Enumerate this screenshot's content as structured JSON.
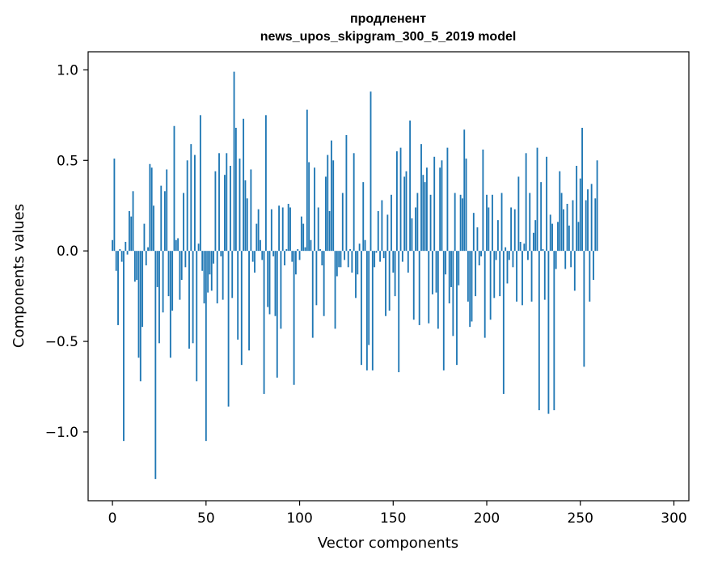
{
  "chart_data": {
    "type": "bar",
    "title_line1": "продленент",
    "title_line2": "news_upos_skipgram_300_5_2019 model",
    "xlabel": "Vector components",
    "ylabel": "Components values",
    "xlim": [
      -13,
      308
    ],
    "ylim": [
      -1.38,
      1.1
    ],
    "xticks": [
      0,
      50,
      100,
      150,
      200,
      250,
      300
    ],
    "xtick_labels": [
      "0",
      "50",
      "100",
      "150",
      "200",
      "250",
      "300"
    ],
    "yticks": [
      -1.0,
      -0.5,
      0.0,
      0.5,
      1.0
    ],
    "ytick_labels": [
      "−1.0",
      "−0.5",
      "0.0",
      "0.5",
      "1.0"
    ],
    "color": "#1f77b4",
    "values": [
      0.06,
      0.51,
      -0.11,
      -0.41,
      0.01,
      -0.06,
      -1.05,
      0.05,
      -0.02,
      0.22,
      0.19,
      0.33,
      -0.17,
      -0.16,
      -0.59,
      -0.72,
      -0.42,
      0.15,
      -0.08,
      0.02,
      0.48,
      0.46,
      0.25,
      -1.26,
      -0.2,
      -0.51,
      0.36,
      -0.34,
      0.33,
      0.45,
      -0.25,
      -0.59,
      -0.33,
      0.69,
      0.06,
      0.07,
      -0.27,
      -0.16,
      0.32,
      -0.09,
      0.5,
      -0.54,
      0.59,
      -0.51,
      0.53,
      -0.72,
      0.04,
      0.75,
      -0.11,
      -0.29,
      -1.05,
      -0.23,
      -0.13,
      -0.22,
      -0.07,
      0.44,
      -0.29,
      0.54,
      -0.03,
      -0.27,
      0.42,
      0.54,
      -0.86,
      0.47,
      -0.26,
      0.99,
      0.68,
      -0.49,
      0.51,
      -0.63,
      0.73,
      0.39,
      0.29,
      -0.55,
      0.45,
      -0.06,
      -0.12,
      0.15,
      0.23,
      0.06,
      -0.05,
      -0.79,
      0.75,
      -0.31,
      -0.35,
      0.23,
      -0.03,
      -0.36,
      -0.7,
      0.25,
      -0.43,
      0.24,
      -0.08,
      0.01,
      0.26,
      0.24,
      -0.06,
      -0.74,
      -0.13,
      0.01,
      -0.05,
      0.19,
      0.15,
      0.02,
      0.78,
      0.49,
      0.06,
      -0.48,
      0.46,
      -0.3,
      0.24,
      0.01,
      -0.08,
      -0.36,
      0.41,
      0.53,
      0.22,
      0.61,
      0.5,
      -0.43,
      -0.14,
      -0.09,
      -0.09,
      0.32,
      -0.05,
      0.64,
      -0.09,
      0.01,
      -0.12,
      0.54,
      -0.26,
      -0.13,
      0.04,
      -0.63,
      0.38,
      0.06,
      -0.66,
      -0.52,
      0.88,
      -0.66,
      -0.09,
      -0.01,
      0.22,
      -0.06,
      0.28,
      -0.04,
      -0.36,
      0.2,
      -0.33,
      0.31,
      -0.12,
      -0.25,
      0.55,
      -0.67,
      0.57,
      -0.06,
      0.41,
      0.44,
      -0.12,
      0.72,
      0.18,
      -0.38,
      0.24,
      0.32,
      -0.41,
      0.59,
      0.42,
      0.38,
      0.46,
      -0.4,
      0.31,
      -0.24,
      0.52,
      -0.23,
      -0.43,
      0.46,
      0.5,
      -0.66,
      -0.13,
      0.57,
      -0.29,
      -0.2,
      -0.47,
      0.32,
      -0.63,
      -0.19,
      0.31,
      0.29,
      0.67,
      0.51,
      -0.28,
      -0.42,
      -0.39,
      0.21,
      -0.25,
      0.13,
      -0.08,
      -0.03,
      0.56,
      -0.48,
      0.31,
      0.24,
      -0.38,
      0.31,
      -0.26,
      -0.05,
      0.17,
      -0.25,
      0.32,
      -0.79,
      0.02,
      -0.18,
      -0.05,
      0.24,
      -0.09,
      0.23,
      -0.28,
      0.41,
      0.05,
      -0.3,
      0.04,
      0.54,
      -0.05,
      0.32,
      -0.28,
      0.1,
      0.17,
      0.57,
      -0.88,
      0.38,
      0.01,
      -0.27,
      0.52,
      -0.9,
      0.2,
      0.15,
      -0.88,
      -0.1,
      0.16,
      0.44,
      0.32,
      0.23,
      -0.1,
      0.26,
      0.14,
      -0.09,
      0.28,
      -0.22,
      0.47,
      0.16,
      0.4,
      0.68,
      -0.64,
      0.28,
      0.34,
      -0.28,
      0.37,
      -0.16,
      0.29,
      0.5
    ]
  }
}
